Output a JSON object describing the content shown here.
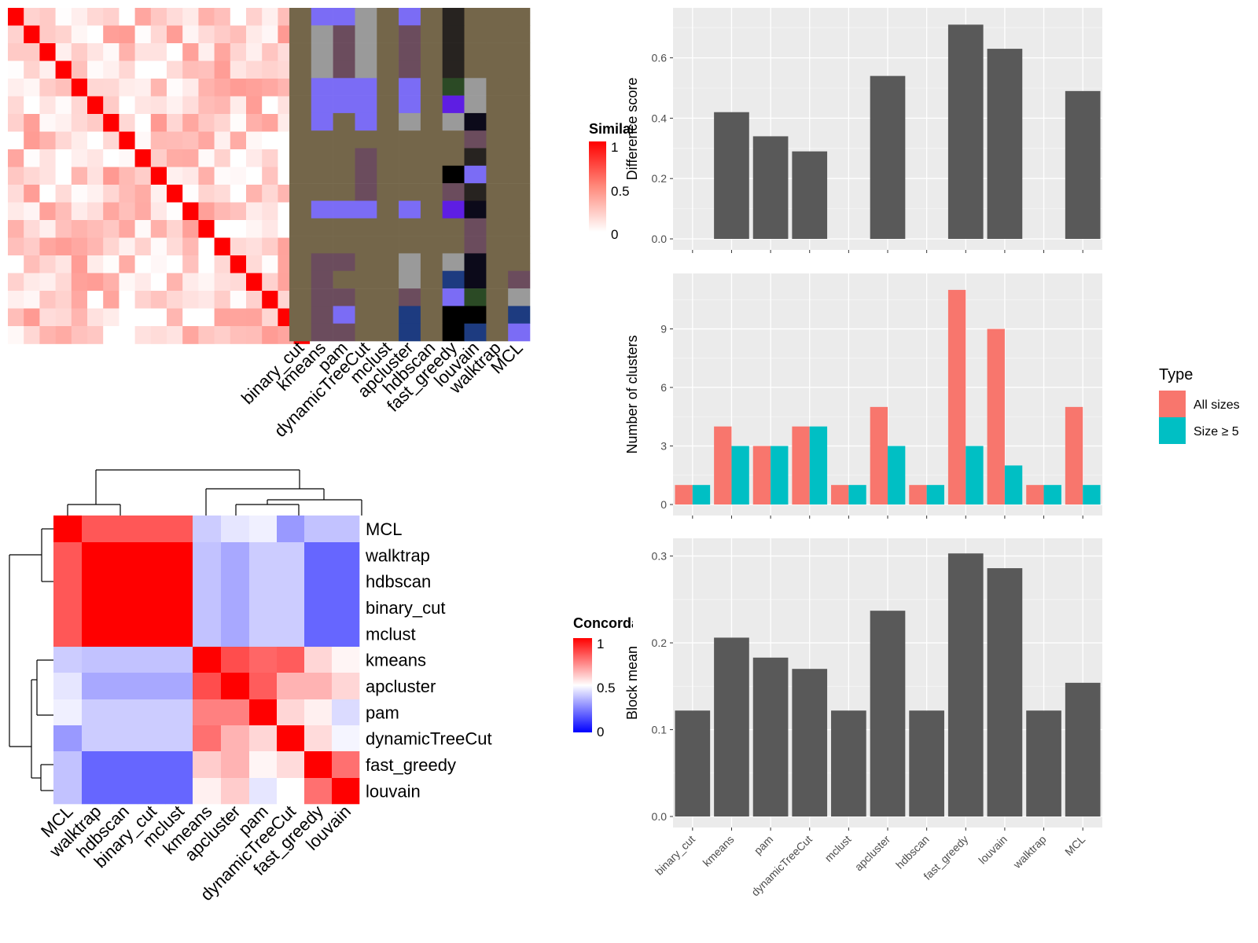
{
  "colors": {
    "panel_bg": "#ebebeb",
    "grid": "#ffffff",
    "bar": "#595959",
    "all_sizes": "#f8766d",
    "size5": "#00bfc4",
    "heat_high": "#ff0000",
    "heat_mid": "#ffffff",
    "heat_low": "#0000ff",
    "class_bg": "#74664a"
  },
  "similarity_legend": {
    "title": "Similarity",
    "ticks": [
      "1",
      "0.5",
      "0"
    ]
  },
  "concordance_legend": {
    "title": "Concordance",
    "ticks": [
      "1",
      "0.5",
      "0"
    ]
  },
  "class_heatmap": {
    "labels": [
      "binary_cut",
      "kmeans",
      "pam",
      "dynamicTreeCut",
      "mclust",
      "apcluster",
      "hdbscan",
      "fast_greedy",
      "louvain",
      "walktrap",
      "MCL"
    ],
    "palette": [
      "#74664a",
      "#7b6cf5",
      "#9a9a9a",
      "#6b4c5d",
      "#272320",
      "#2b4a25",
      "#5e1ee3",
      "#0c0a1a",
      "#1d3b80",
      "#000000"
    ],
    "rows": [
      [
        0,
        1,
        1,
        2,
        0,
        1,
        0,
        4,
        0,
        0,
        0
      ],
      [
        0,
        2,
        3,
        2,
        0,
        3,
        0,
        4,
        0,
        0,
        0
      ],
      [
        0,
        2,
        3,
        2,
        0,
        3,
        0,
        4,
        0,
        0,
        0
      ],
      [
        0,
        2,
        3,
        2,
        0,
        3,
        0,
        4,
        0,
        0,
        0
      ],
      [
        0,
        1,
        1,
        1,
        0,
        1,
        0,
        5,
        2,
        0,
        0
      ],
      [
        0,
        1,
        1,
        1,
        0,
        1,
        0,
        6,
        2,
        0,
        0
      ],
      [
        0,
        1,
        0,
        1,
        0,
        2,
        0,
        2,
        7,
        0,
        0
      ],
      [
        0,
        0,
        0,
        0,
        0,
        0,
        0,
        0,
        3,
        0,
        0
      ],
      [
        0,
        0,
        0,
        3,
        0,
        0,
        0,
        0,
        4,
        0,
        0
      ],
      [
        0,
        0,
        0,
        3,
        0,
        0,
        0,
        9,
        1,
        0,
        0
      ],
      [
        0,
        0,
        0,
        3,
        0,
        0,
        0,
        3,
        4,
        0,
        0
      ],
      [
        0,
        1,
        1,
        1,
        0,
        1,
        0,
        6,
        7,
        0,
        0
      ],
      [
        0,
        0,
        0,
        0,
        0,
        0,
        0,
        0,
        3,
        0,
        0
      ],
      [
        0,
        0,
        0,
        0,
        0,
        0,
        0,
        0,
        3,
        0,
        0
      ],
      [
        0,
        3,
        3,
        0,
        0,
        2,
        0,
        2,
        7,
        0,
        0
      ],
      [
        0,
        3,
        0,
        0,
        0,
        2,
        0,
        8,
        7,
        0,
        3
      ],
      [
        0,
        3,
        3,
        0,
        0,
        3,
        0,
        1,
        5,
        0,
        2
      ],
      [
        0,
        3,
        1,
        0,
        0,
        8,
        0,
        9,
        9,
        0,
        8
      ],
      [
        0,
        3,
        3,
        0,
        0,
        8,
        0,
        9,
        8,
        0,
        1
      ]
    ]
  },
  "concordance": {
    "order": [
      "MCL",
      "walktrap",
      "hdbscan",
      "binary_cut",
      "mclust",
      "kmeans",
      "apcluster",
      "pam",
      "dynamicTreeCut",
      "fast_greedy",
      "louvain"
    ],
    "matrix": [
      [
        1.0,
        0.83,
        0.83,
        0.83,
        0.83,
        0.4,
        0.45,
        0.47,
        0.3,
        0.38,
        0.38
      ],
      [
        0.83,
        1.0,
        1.0,
        1.0,
        1.0,
        0.38,
        0.33,
        0.4,
        0.4,
        0.2,
        0.2
      ],
      [
        0.83,
        1.0,
        1.0,
        1.0,
        1.0,
        0.38,
        0.33,
        0.4,
        0.4,
        0.2,
        0.2
      ],
      [
        0.83,
        1.0,
        1.0,
        1.0,
        1.0,
        0.38,
        0.33,
        0.4,
        0.4,
        0.2,
        0.2
      ],
      [
        0.83,
        1.0,
        1.0,
        1.0,
        1.0,
        0.38,
        0.33,
        0.4,
        0.4,
        0.2,
        0.2
      ],
      [
        0.4,
        0.38,
        0.38,
        0.38,
        0.38,
        1.0,
        0.85,
        0.8,
        0.82,
        0.58,
        0.52
      ],
      [
        0.45,
        0.33,
        0.33,
        0.33,
        0.33,
        0.85,
        1.0,
        0.82,
        0.65,
        0.65,
        0.58
      ],
      [
        0.47,
        0.4,
        0.4,
        0.4,
        0.4,
        0.75,
        0.75,
        1.0,
        0.58,
        0.53,
        0.43
      ],
      [
        0.3,
        0.4,
        0.4,
        0.4,
        0.4,
        0.78,
        0.65,
        0.58,
        1.0,
        0.57,
        0.48
      ],
      [
        0.38,
        0.2,
        0.2,
        0.2,
        0.2,
        0.6,
        0.65,
        0.52,
        0.57,
        1.0,
        0.78
      ],
      [
        0.38,
        0.2,
        0.2,
        0.2,
        0.2,
        0.53,
        0.6,
        0.45,
        0.5,
        0.78,
        1.0
      ]
    ]
  },
  "chart_data": [
    {
      "type": "heatmap",
      "title": "",
      "legend_title": "Similarity",
      "n": 19,
      "note": "similarity matrix, diagonal = 1"
    },
    {
      "type": "bar",
      "categories": [
        "binary_cut",
        "kmeans",
        "pam",
        "dynamicTreeCut",
        "mclust",
        "apcluster",
        "hdbscan",
        "fast_greedy",
        "louvain",
        "walktrap",
        "MCL"
      ],
      "values": [
        0,
        0.42,
        0.34,
        0.29,
        0,
        0.54,
        0,
        0.71,
        0.63,
        0,
        0.49
      ],
      "ylabel": "Difference score",
      "xlabel": "",
      "ylim": [
        0,
        0.75
      ],
      "yticks": [
        "0.0",
        "0.2",
        "0.4",
        "0.6"
      ]
    },
    {
      "type": "bar",
      "categories": [
        "binary_cut",
        "kmeans",
        "pam",
        "dynamicTreeCut",
        "mclust",
        "apcluster",
        "hdbscan",
        "fast_greedy",
        "louvain",
        "walktrap",
        "MCL"
      ],
      "series": [
        {
          "name": "All sizes",
          "values": [
            1,
            4,
            3,
            4,
            1,
            5,
            1,
            11,
            9,
            1,
            5
          ]
        },
        {
          "name": "Size ≥ 5",
          "values": [
            1,
            3,
            3,
            4,
            1,
            3,
            1,
            3,
            2,
            1,
            1
          ]
        }
      ],
      "ylabel": "Number of clusters",
      "xlabel": "",
      "ylim": [
        0,
        11.6
      ],
      "yticks": [
        "0",
        "3",
        "6",
        "9"
      ],
      "legend_title": "Type",
      "legend_position": "right"
    },
    {
      "type": "bar",
      "categories": [
        "binary_cut",
        "kmeans",
        "pam",
        "dynamicTreeCut",
        "mclust",
        "apcluster",
        "hdbscan",
        "fast_greedy",
        "louvain",
        "walktrap",
        "MCL"
      ],
      "values": [
        0.122,
        0.206,
        0.183,
        0.17,
        0.122,
        0.237,
        0.122,
        0.303,
        0.286,
        0.122,
        0.154
      ],
      "ylabel": "Block mean",
      "xlabel": "",
      "ylim": [
        0,
        0.315
      ],
      "yticks": [
        "0.0",
        "0.1",
        "0.2",
        "0.3"
      ]
    }
  ]
}
